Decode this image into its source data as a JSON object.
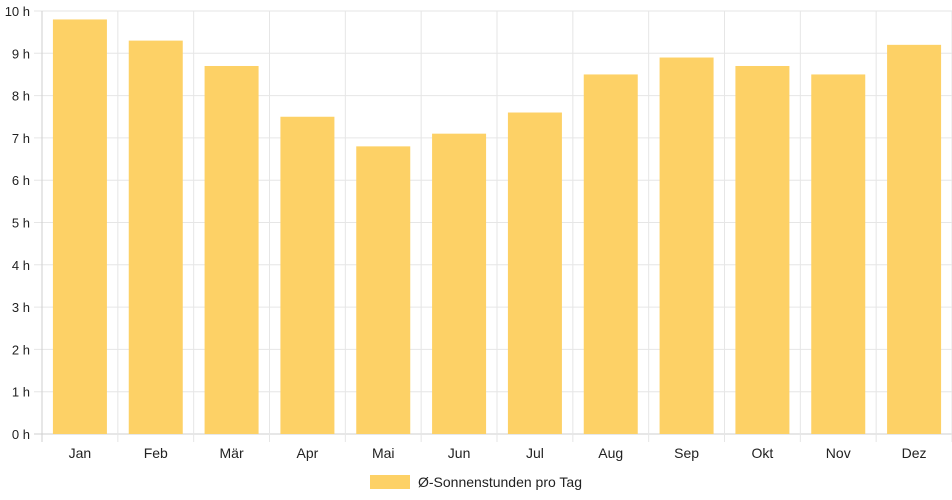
{
  "chart_data": {
    "type": "bar",
    "categories": [
      "Jan",
      "Feb",
      "Mär",
      "Apr",
      "Mai",
      "Jun",
      "Jul",
      "Aug",
      "Sep",
      "Okt",
      "Nov",
      "Dez"
    ],
    "series": [
      {
        "name": "Ø-Sonnenstunden pro Tag",
        "values": [
          9.8,
          9.3,
          8.7,
          7.5,
          6.8,
          7.1,
          7.6,
          8.5,
          8.9,
          8.7,
          8.5,
          9.2
        ],
        "color": "#fdd166"
      }
    ],
    "ylim": [
      0,
      10
    ],
    "yticks": [
      0,
      1,
      2,
      3,
      4,
      5,
      6,
      7,
      8,
      9,
      10
    ],
    "ytick_suffix": " h",
    "grid": true,
    "legend_position": "bottom"
  }
}
